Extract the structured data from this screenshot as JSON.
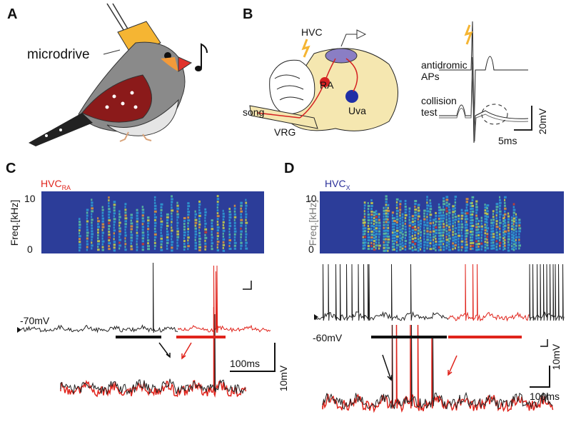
{
  "panel_a": {
    "label": "A",
    "microdrive": "microdrive"
  },
  "panel_b": {
    "label": "B",
    "hvc": "HVC",
    "ra": "RA",
    "song": "song",
    "vrg": "VRG",
    "uva": "Uva",
    "antidromic": [
      "antidromic",
      "APs"
    ],
    "collision": [
      "collision",
      "test"
    ],
    "scale_v": "20mV",
    "scale_t": "5ms"
  },
  "panel_c": {
    "label": "C",
    "title": "HVC",
    "title_sub": "RA",
    "freq_max": "10",
    "freq_min": "0",
    "freq_label": "Freq.[kHz]",
    "rest": "-70mV",
    "scale_t": "100ms",
    "scale_v": "10mV"
  },
  "panel_d": {
    "label": "D",
    "title": "HVC",
    "title_sub": "X",
    "freq_max": "10",
    "freq_min": "0",
    "freq_label": "Freq.[kHz]",
    "rest": "-60mV",
    "scale_v": "10mV",
    "scale_t": "100ms"
  }
}
